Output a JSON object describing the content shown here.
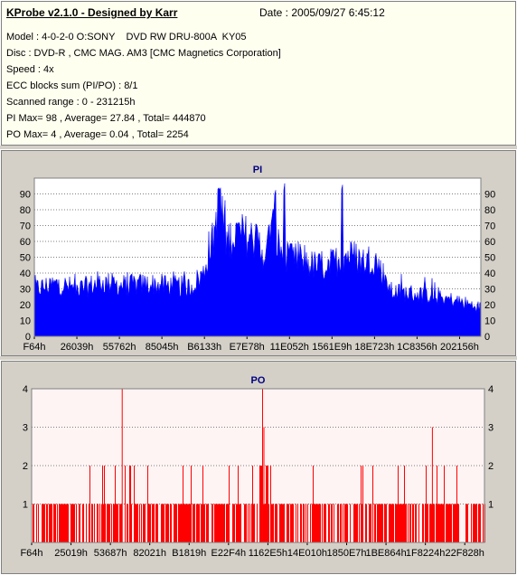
{
  "header": {
    "app_title": "KProbe v2.1.0 - Designed by Karr",
    "date": "Date : 2005/09/27 6:45:12",
    "model": "Model : 4-0-2-0 O:SONY    DVD RW DRU-800A  KY05",
    "disc": "Disc : DVD-R , CMC MAG. AM3 [CMC Magnetics Corporation]",
    "speed": "Speed : 4x",
    "ecc": "ECC blocks sum (PI/PO) : 8/1",
    "range": "Scanned range : 0 - 231215h",
    "pi_stats": "PI Max= 98 , Average= 27.84 , Total= 444870",
    "po_stats": "PO Max= 4 , Average= 0.04 , Total= 2254"
  },
  "colors": {
    "pi_fill": "#0000ff",
    "po_bar": "#ff0000",
    "plot_bg_pi": "#ffffff",
    "plot_bg_po": "#fff4f4",
    "panel_bg": "#d4d0c8",
    "title_color": "#000080"
  },
  "chart_data": [
    {
      "type": "area",
      "title": "PI",
      "ylim": [
        0,
        100
      ],
      "yticks": [
        0,
        10,
        20,
        30,
        40,
        50,
        60,
        70,
        80,
        90
      ],
      "xtick_labels": [
        "F64h",
        "26039h",
        "55762h",
        "85045h",
        "B6133h",
        "E7E78h",
        "11E052h",
        "1561E9h",
        "18E723h",
        "1C8356h",
        "202156h"
      ],
      "grid": true,
      "x_fraction": [
        0.0,
        0.05,
        0.1,
        0.15,
        0.2,
        0.25,
        0.3,
        0.35,
        0.38,
        0.39,
        0.4,
        0.41,
        0.42,
        0.43,
        0.45,
        0.48,
        0.5,
        0.52,
        0.53,
        0.54,
        0.55,
        0.57,
        0.58,
        0.6,
        0.62,
        0.64,
        0.66,
        0.68,
        0.7,
        0.72,
        0.74,
        0.76,
        0.78,
        0.8,
        0.85,
        0.9,
        0.95,
        1.0
      ],
      "values": [
        30,
        33,
        30,
        34,
        32,
        33,
        32,
        31,
        40,
        55,
        60,
        80,
        75,
        60,
        65,
        63,
        60,
        50,
        75,
        62,
        55,
        50,
        48,
        50,
        45,
        44,
        45,
        48,
        52,
        50,
        47,
        50,
        40,
        28,
        27,
        25,
        22,
        18
      ],
      "peaks": [
        0.413,
        0.417,
        0.54,
        0.56,
        0.69
      ]
    },
    {
      "type": "bar",
      "title": "PO",
      "ylim": [
        0,
        4
      ],
      "yticks": [
        1,
        2,
        3,
        4
      ],
      "xtick_labels": [
        "F64h",
        "25019h",
        "53687h",
        "82021h",
        "B1819h",
        "E22F4h",
        "1162E5h",
        "14E010h",
        "1850E7h",
        "1BE864h",
        "1F8224h",
        "22F828h"
      ],
      "grid": true,
      "baseline_level": 1,
      "twos_density": 0.3,
      "spikes": [
        {
          "x_fraction": 0.2,
          "value": 4
        },
        {
          "x_fraction": 0.51,
          "value": 4
        },
        {
          "x_fraction": 0.513,
          "value": 3
        },
        {
          "x_fraction": 0.885,
          "value": 3
        }
      ],
      "dense_twos_range": [
        0.5,
        0.53
      ]
    }
  ]
}
